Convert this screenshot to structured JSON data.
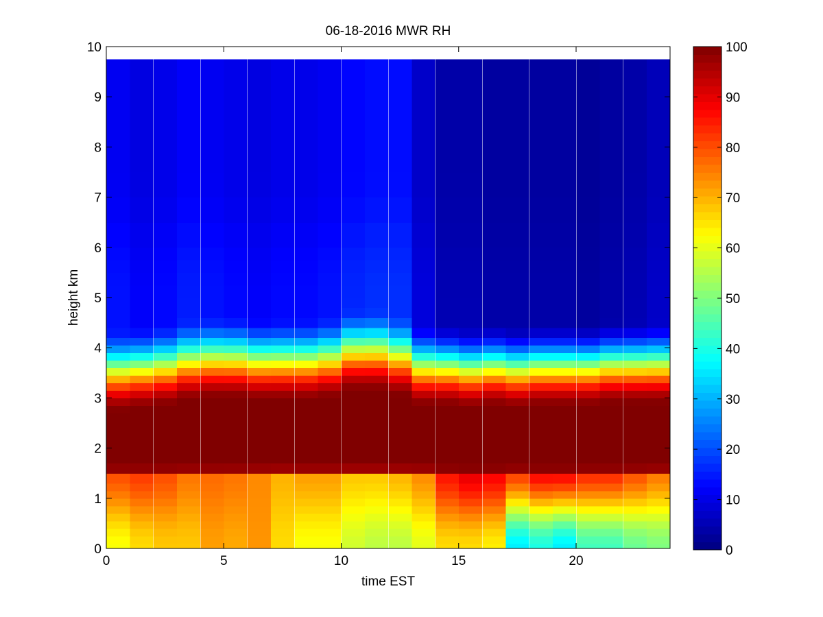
{
  "chart_data": {
    "type": "heatmap",
    "title": "06-18-2016 MWR RH",
    "xlabel": "time EST",
    "ylabel": "height km",
    "xlim": [
      0,
      24
    ],
    "ylim": [
      0,
      10
    ],
    "xticks": [
      0,
      5,
      10,
      15,
      20
    ],
    "yticks": [
      0,
      1,
      2,
      3,
      4,
      5,
      6,
      7,
      8,
      9,
      10
    ],
    "colorbar": {
      "colormap": "jet",
      "range": [
        0,
        100
      ],
      "ticks": [
        0,
        10,
        20,
        30,
        40,
        50,
        60,
        70,
        80,
        90,
        100
      ]
    },
    "times": [
      0,
      1,
      2,
      3,
      4,
      5,
      6,
      7,
      8,
      9,
      10,
      11,
      12,
      13,
      14,
      15,
      16,
      17,
      18,
      19,
      20,
      21,
      22,
      23
    ],
    "heights": [
      0.0,
      0.1,
      0.25,
      0.4,
      0.55,
      0.7,
      0.85,
      1.0,
      1.15,
      1.3,
      1.5,
      1.7,
      1.9,
      2.1,
      2.3,
      2.5,
      2.7,
      2.85,
      3.0,
      3.15,
      3.3,
      3.45,
      3.6,
      3.75,
      3.9,
      4.05,
      4.2,
      4.4,
      4.6,
      4.8,
      5.0,
      5.25,
      5.5,
      5.75,
      6.0,
      6.5,
      7.0,
      7.5,
      8.0,
      8.5,
      9.0,
      9.5,
      9.75
    ],
    "rh_profiles": [
      {
        "time": 0,
        "rh_surface": 62,
        "rh_low": 80,
        "moist_top_km": 2.8,
        "rh_upper": 14
      },
      {
        "time": 1,
        "rh_surface": 66,
        "rh_low": 82,
        "moist_top_km": 2.85,
        "rh_upper": 12
      },
      {
        "time": 2,
        "rh_surface": 68,
        "rh_low": 80,
        "moist_top_km": 2.9,
        "rh_upper": 13
      },
      {
        "time": 3,
        "rh_surface": 68,
        "rh_low": 76,
        "moist_top_km": 3.0,
        "rh_upper": 15
      },
      {
        "time": 4,
        "rh_surface": 72,
        "rh_low": 77,
        "moist_top_km": 3.05,
        "rh_upper": 14
      },
      {
        "time": 5,
        "rh_surface": 71,
        "rh_low": 76,
        "moist_top_km": 3.05,
        "rh_upper": 13
      },
      {
        "time": 6,
        "rh_surface": 73,
        "rh_low": 74,
        "moist_top_km": 3.0,
        "rh_upper": 12
      },
      {
        "time": 7,
        "rh_surface": 66,
        "rh_low": 70,
        "moist_top_km": 3.0,
        "rh_upper": 13
      },
      {
        "time": 8,
        "rh_surface": 62,
        "rh_low": 72,
        "moist_top_km": 3.0,
        "rh_upper": 13
      },
      {
        "time": 9,
        "rh_surface": 62,
        "rh_low": 72,
        "moist_top_km": 3.05,
        "rh_upper": 14
      },
      {
        "time": 10,
        "rh_surface": 58,
        "rh_low": 68,
        "moist_top_km": 3.2,
        "rh_upper": 16
      },
      {
        "time": 11,
        "rh_surface": 56,
        "rh_low": 68,
        "moist_top_km": 3.2,
        "rh_upper": 17
      },
      {
        "time": 12,
        "rh_surface": 56,
        "rh_low": 70,
        "moist_top_km": 3.1,
        "rh_upper": 17
      },
      {
        "time": 13,
        "rh_surface": 60,
        "rh_low": 74,
        "moist_top_km": 2.9,
        "rh_upper": 9
      },
      {
        "time": 14,
        "rh_surface": 66,
        "rh_low": 86,
        "moist_top_km": 2.9,
        "rh_upper": 5
      },
      {
        "time": 15,
        "rh_surface": 66,
        "rh_low": 90,
        "moist_top_km": 2.85,
        "rh_upper": 5
      },
      {
        "time": 16,
        "rh_surface": 64,
        "rh_low": 88,
        "moist_top_km": 2.9,
        "rh_upper": 4
      },
      {
        "time": 17,
        "rh_surface": 36,
        "rh_low": 82,
        "moist_top_km": 2.85,
        "rh_upper": 4
      },
      {
        "time": 18,
        "rh_surface": 40,
        "rh_low": 88,
        "moist_top_km": 2.9,
        "rh_upper": 4
      },
      {
        "time": 19,
        "rh_surface": 36,
        "rh_low": 88,
        "moist_top_km": 2.9,
        "rh_upper": 4
      },
      {
        "time": 20,
        "rh_surface": 44,
        "rh_low": 84,
        "moist_top_km": 2.9,
        "rh_upper": 3
      },
      {
        "time": 21,
        "rh_surface": 44,
        "rh_low": 84,
        "moist_top_km": 2.95,
        "rh_upper": 4
      },
      {
        "time": 22,
        "rh_surface": 48,
        "rh_low": 80,
        "moist_top_km": 2.95,
        "rh_upper": 5
      },
      {
        "time": 23,
        "rh_surface": 50,
        "rh_low": 76,
        "moist_top_km": 2.95,
        "rh_upper": 7
      }
    ]
  }
}
